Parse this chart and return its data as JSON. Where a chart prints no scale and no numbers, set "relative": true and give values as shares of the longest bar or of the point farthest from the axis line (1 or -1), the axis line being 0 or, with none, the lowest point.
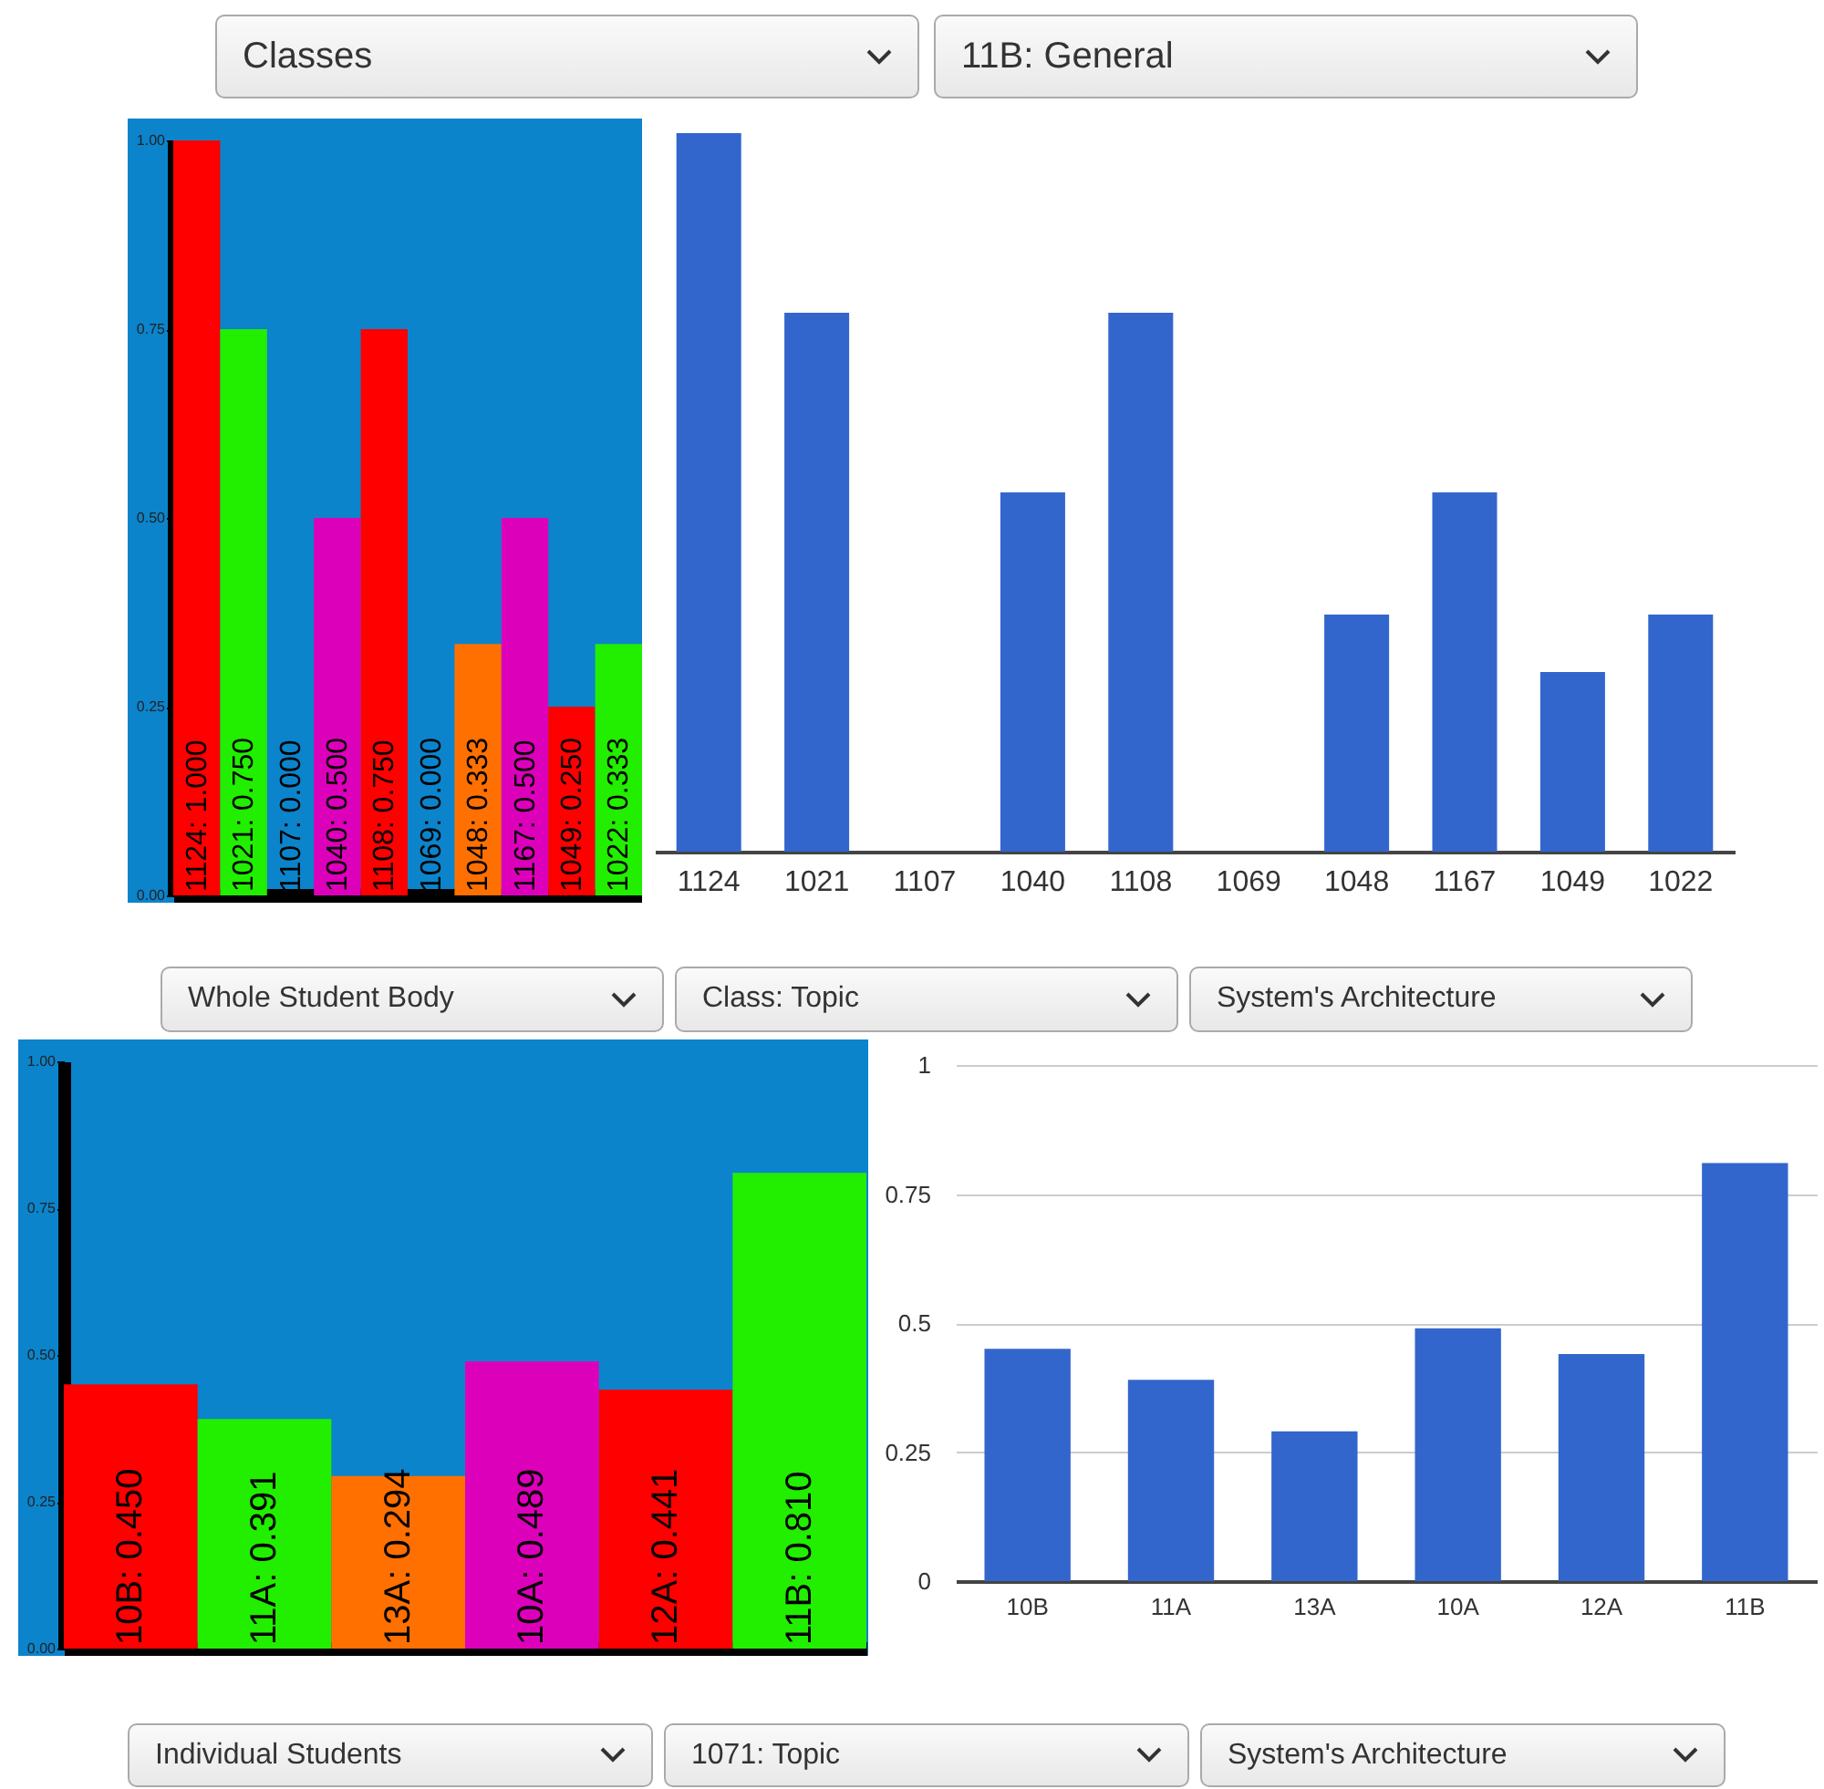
{
  "chart_data": [
    {
      "type": "other",
      "annotations": [
        "Classes",
        "11B: General"
      ]
    },
    {
      "type": "bar",
      "categories": [
        null,
        null,
        null,
        null,
        null,
        null,
        null,
        null,
        null,
        null
      ],
      "values": [
        1.0,
        0.75,
        0.0,
        0.5,
        0.75,
        0.0,
        0.333,
        0.5,
        0.25,
        0.333
      ],
      "colors": [
        "#ff0000",
        "#22ee00",
        "#ff7000",
        "#dd00bb",
        "#ff0000",
        "#22ee00",
        "#ff7000",
        "#dd00bb",
        "#ff0000",
        "#22ee00"
      ],
      "value_labels": [
        "1124: 1.000",
        "1021: 0.750",
        "1107: 0.000",
        "1040: 0.500",
        "1108: 0.750",
        "1069: 0.000",
        "1048: 0.333",
        "1167: 0.500",
        "1049: 0.250",
        "1022: 0.333"
      ],
      "ylim": [
        0,
        1
      ],
      "yticks": [
        {
          "value": 0,
          "label": "0.00"
        },
        {
          "value": 0.25,
          "label": "0.25"
        },
        {
          "value": 0.5,
          "label": "0.50"
        },
        {
          "value": 0.75,
          "label": "0.75"
        },
        {
          "value": 1,
          "label": "1.00"
        }
      ],
      "tick_labels": "y"
    },
    {
      "type": "bar",
      "relative": true,
      "categories": [
        "1124",
        "1021",
        "1107",
        "1040",
        "1108",
        "1069",
        "1048",
        "1167",
        "1049",
        "1022"
      ],
      "values": [
        1,
        0.75,
        0,
        0.5,
        0.75,
        0,
        0.33,
        0.5,
        0.25,
        0.33
      ],
      "color": "#3366cc"
    },
    {
      "type": "other",
      "annotations": [
        "Whole Student Body",
        "Class: Topic",
        "System's Architecture"
      ]
    },
    {
      "type": "bar",
      "categories": [
        null,
        null,
        null,
        null,
        null,
        null
      ],
      "values": [
        0.45,
        0.391,
        0.294,
        0.489,
        0.441,
        0.81
      ],
      "colors": [
        "#ff0000",
        "#22ee00",
        "#ff7000",
        "#dd00bb",
        "#ff0000",
        "#22ee00"
      ],
      "value_labels": [
        "10B: 0.450",
        "11A: 0.391",
        "13A: 0.294",
        "10A: 0.489",
        "12A: 0.441",
        "11B: 0.810"
      ],
      "ylim": [
        0,
        1
      ],
      "yticks": [
        {
          "value": 0,
          "label": "0.00"
        },
        {
          "value": 0.25,
          "label": "0.25"
        },
        {
          "value": 0.5,
          "label": "0.50"
        },
        {
          "value": 0.75,
          "label": "0.75"
        },
        {
          "value": 1,
          "label": "1.00"
        }
      ],
      "tick_labels": "y"
    },
    {
      "type": "bar",
      "categories": [
        "10B",
        "11A",
        "13A",
        "10A",
        "12A",
        "11B"
      ],
      "values": [
        0.45,
        0.39,
        0.29,
        0.49,
        0.44,
        0.81
      ],
      "color": "#3366cc",
      "ylim": [
        0,
        1
      ],
      "yticks": [
        0,
        0.25,
        0.5,
        0.75,
        1
      ],
      "grid": true
    },
    {
      "type": "other",
      "annotations": [
        "Individual Students",
        "1071: Topic",
        "System's Architecture"
      ]
    }
  ]
}
